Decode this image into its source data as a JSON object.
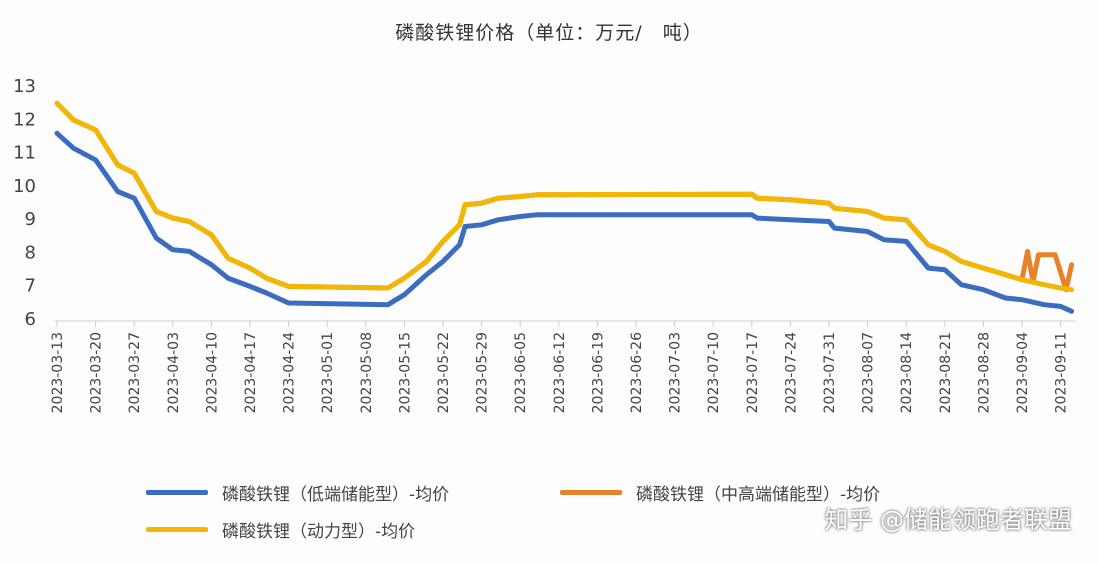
{
  "chart_data": {
    "type": "line",
    "title": "磷酸铁锂价格（单位：万元/　吨）",
    "xlabel": "",
    "ylabel": "",
    "ylim": [
      6,
      13
    ],
    "yticks": [
      "6",
      "7",
      "8",
      "9",
      "10",
      "11",
      "12",
      "13"
    ],
    "xticks": [
      "2023-03-13",
      "2023-03-20",
      "2023-03-27",
      "2023-04-03",
      "2023-04-10",
      "2023-04-17",
      "2023-04-24",
      "2023-05-01",
      "2023-05-08",
      "2023-05-15",
      "2023-05-22",
      "2023-05-29",
      "2023-06-05",
      "2023-06-12",
      "2023-06-19",
      "2023-06-26",
      "2023-07-03",
      "2023-07-10",
      "2023-07-17",
      "2023-07-24",
      "2023-07-31",
      "2023-08-07",
      "2023-08-14",
      "2023-08-21",
      "2023-08-28",
      "2023-09-04",
      "2023-09-11"
    ],
    "grid": false,
    "legend_position": "bottom",
    "series": [
      {
        "name": "磷酸铁锂（低端储能型）-均价",
        "color": "#3a6cc0",
        "x": [
          "2023-03-13",
          "2023-03-16",
          "2023-03-20",
          "2023-03-24",
          "2023-03-27",
          "2023-03-31",
          "2023-04-03",
          "2023-04-06",
          "2023-04-10",
          "2023-04-13",
          "2023-04-17",
          "2023-04-20",
          "2023-04-24",
          "2023-05-12",
          "2023-05-15",
          "2023-05-19",
          "2023-05-22",
          "2023-05-25",
          "2023-05-26",
          "2023-05-29",
          "2023-06-01",
          "2023-06-05",
          "2023-06-08",
          "2023-07-17",
          "2023-07-18",
          "2023-07-24",
          "2023-07-31",
          "2023-08-01",
          "2023-08-07",
          "2023-08-10",
          "2023-08-14",
          "2023-08-18",
          "2023-08-21",
          "2023-08-24",
          "2023-08-28",
          "2023-09-01",
          "2023-09-04",
          "2023-09-08",
          "2023-09-11",
          "2023-09-13"
        ],
        "values": [
          11.55,
          11.1,
          10.75,
          9.8,
          9.6,
          8.4,
          8.05,
          8.0,
          7.6,
          7.2,
          6.95,
          6.75,
          6.45,
          6.4,
          6.7,
          7.3,
          7.7,
          8.2,
          8.75,
          8.8,
          8.95,
          9.05,
          9.1,
          9.1,
          9.0,
          8.95,
          8.9,
          8.7,
          8.6,
          8.35,
          8.3,
          7.5,
          7.45,
          7.0,
          6.85,
          6.6,
          6.55,
          6.4,
          6.35,
          6.2
        ]
      },
      {
        "name": "磷酸铁锂（中高端储能型）-均价",
        "color": "#e8822a",
        "x": [
          "2023-03-13",
          "2023-03-16",
          "2023-03-20",
          "2023-03-24",
          "2023-03-27",
          "2023-03-31",
          "2023-04-03",
          "2023-04-06",
          "2023-04-10",
          "2023-04-13",
          "2023-04-17",
          "2023-04-20",
          "2023-04-24",
          "2023-05-12",
          "2023-05-15",
          "2023-05-19",
          "2023-05-22",
          "2023-05-25",
          "2023-05-26",
          "2023-05-29",
          "2023-06-01",
          "2023-06-05",
          "2023-06-08",
          "2023-07-17",
          "2023-07-18",
          "2023-07-24",
          "2023-07-31",
          "2023-08-01",
          "2023-08-07",
          "2023-08-10",
          "2023-08-14",
          "2023-08-18",
          "2023-08-21",
          "2023-08-24",
          "2023-08-28",
          "2023-09-01",
          "2023-09-04",
          "2023-09-05",
          "2023-09-06",
          "2023-09-07",
          "2023-09-10",
          "2023-09-12",
          "2023-09-13"
        ],
        "values": [
          12.45,
          11.95,
          11.65,
          10.6,
          10.35,
          9.2,
          9.0,
          8.9,
          8.5,
          7.8,
          7.5,
          7.2,
          6.95,
          6.9,
          7.2,
          7.7,
          8.3,
          8.8,
          9.4,
          9.45,
          9.6,
          9.65,
          9.7,
          9.72,
          9.6,
          9.55,
          9.45,
          9.3,
          9.2,
          9.0,
          8.95,
          8.2,
          8.0,
          7.7,
          7.5,
          7.3,
          7.15,
          8.0,
          7.1,
          7.9,
          7.9,
          6.85,
          7.6
        ]
      },
      {
        "name": "磷酸铁锂（动力型）-均价",
        "color": "#f2b705",
        "x": [
          "2023-03-13",
          "2023-03-16",
          "2023-03-20",
          "2023-03-24",
          "2023-03-27",
          "2023-03-31",
          "2023-04-03",
          "2023-04-06",
          "2023-04-10",
          "2023-04-13",
          "2023-04-17",
          "2023-04-20",
          "2023-04-24",
          "2023-05-12",
          "2023-05-15",
          "2023-05-19",
          "2023-05-22",
          "2023-05-25",
          "2023-05-26",
          "2023-05-29",
          "2023-06-01",
          "2023-06-05",
          "2023-06-08",
          "2023-07-17",
          "2023-07-18",
          "2023-07-24",
          "2023-07-31",
          "2023-08-01",
          "2023-08-07",
          "2023-08-10",
          "2023-08-14",
          "2023-08-18",
          "2023-08-21",
          "2023-08-24",
          "2023-08-28",
          "2023-09-01",
          "2023-09-04",
          "2023-09-08",
          "2023-09-11",
          "2023-09-13"
        ],
        "values": [
          12.45,
          11.95,
          11.65,
          10.6,
          10.35,
          9.2,
          9.0,
          8.9,
          8.5,
          7.8,
          7.5,
          7.2,
          6.95,
          6.9,
          7.2,
          7.7,
          8.3,
          8.8,
          9.4,
          9.45,
          9.6,
          9.65,
          9.7,
          9.72,
          9.6,
          9.55,
          9.45,
          9.3,
          9.2,
          9.0,
          8.95,
          8.2,
          8.0,
          7.7,
          7.5,
          7.3,
          7.15,
          7.0,
          6.9,
          6.85
        ]
      }
    ]
  },
  "watermark": "知乎 @储能领跑者联盟"
}
